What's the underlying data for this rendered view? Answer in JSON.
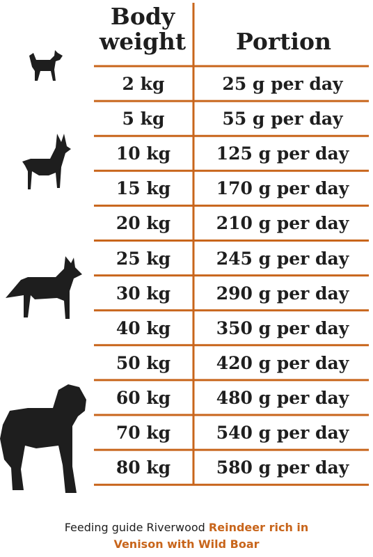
{
  "table": {
    "headers": [
      "Body weight",
      "Portion"
    ],
    "rows": [
      [
        "2 kg",
        "25 g per day"
      ],
      [
        "5 kg",
        "55 g per day"
      ],
      [
        "10 kg",
        "125 g per day"
      ],
      [
        "15 kg",
        "170 g per day"
      ],
      [
        "20 kg",
        "210 g per day"
      ],
      [
        "25 kg",
        "245 g per day"
      ],
      [
        "30 kg",
        "290 g per day"
      ],
      [
        "40 kg",
        "350 g per day"
      ],
      [
        "50 kg",
        "420 g per day"
      ],
      [
        "60 kg",
        "480 g per day"
      ],
      [
        "70 kg",
        "540 g per day"
      ],
      [
        "80 kg",
        "580 g per day"
      ]
    ]
  },
  "footer": {
    "text": "Feeding guide Riverwood",
    "highlight": "Reindeer rich in Venison with Wild Boar"
  }
}
